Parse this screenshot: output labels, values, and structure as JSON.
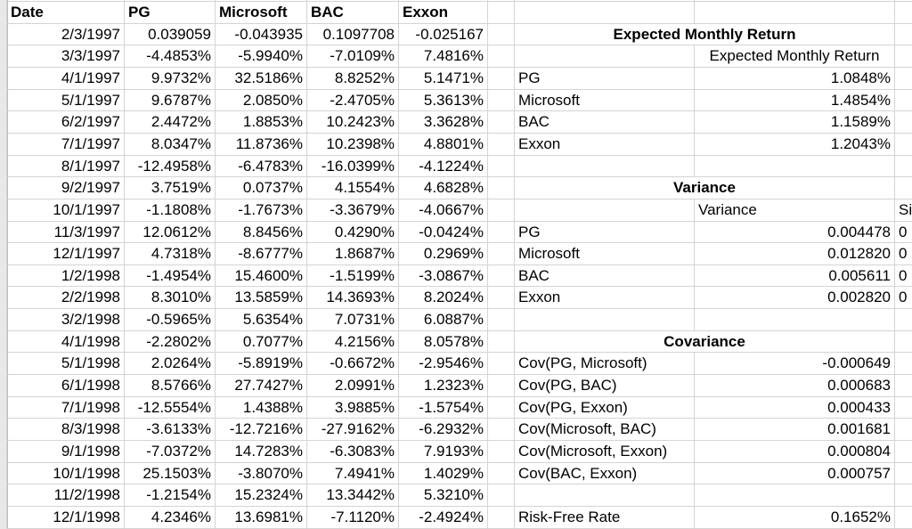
{
  "table": {
    "header": [
      "Date",
      "PG",
      "Microsoft",
      "BAC",
      "Exxon"
    ],
    "rows": [
      [
        "2/3/1997",
        "0.039059",
        "-0.043935",
        "0.1097708",
        "-0.025167"
      ],
      [
        "3/3/1997",
        "-4.4853%",
        "-5.9940%",
        "-7.0109%",
        "7.4816%"
      ],
      [
        "4/1/1997",
        "9.9732%",
        "32.5186%",
        "8.8252%",
        "5.1471%"
      ],
      [
        "5/1/1997",
        "9.6787%",
        "2.0850%",
        "-2.4705%",
        "5.3613%"
      ],
      [
        "6/2/1997",
        "2.4472%",
        "1.8853%",
        "10.2423%",
        "3.3628%"
      ],
      [
        "7/1/1997",
        "8.0347%",
        "11.8736%",
        "10.2398%",
        "4.8801%"
      ],
      [
        "8/1/1997",
        "-12.4958%",
        "-6.4783%",
        "-16.0399%",
        "-4.1224%"
      ],
      [
        "9/2/1997",
        "3.7519%",
        "0.0737%",
        "4.1554%",
        "4.6828%"
      ],
      [
        "10/1/1997",
        "-1.1808%",
        "-1.7673%",
        "-3.3679%",
        "-4.0667%"
      ],
      [
        "11/3/1997",
        "12.0612%",
        "8.8456%",
        "0.4290%",
        "-0.0424%"
      ],
      [
        "12/1/1997",
        "4.7318%",
        "-8.6777%",
        "1.8687%",
        "0.2969%"
      ],
      [
        "1/2/1998",
        "-1.4954%",
        "15.4600%",
        "-1.5199%",
        "-3.0867%"
      ],
      [
        "2/2/1998",
        "8.3010%",
        "13.5859%",
        "14.3693%",
        "8.2024%"
      ],
      [
        "3/2/1998",
        "-0.5965%",
        "5.6354%",
        "7.0731%",
        "6.0887%"
      ],
      [
        "4/1/1998",
        "-2.2802%",
        "0.7077%",
        "4.2156%",
        "8.0578%"
      ],
      [
        "5/1/1998",
        "2.0264%",
        "-5.8919%",
        "-0.6672%",
        "-2.9546%"
      ],
      [
        "6/1/1998",
        "8.5766%",
        "27.7427%",
        "2.0991%",
        "1.2323%"
      ],
      [
        "7/1/1998",
        "-12.5554%",
        "1.4388%",
        "3.9885%",
        "-1.5754%"
      ],
      [
        "8/3/1998",
        "-3.6133%",
        "-12.7216%",
        "-27.9162%",
        "-6.2932%"
      ],
      [
        "9/1/1998",
        "-7.0372%",
        "14.7283%",
        "-6.3083%",
        "7.9193%"
      ],
      [
        "10/1/1998",
        "25.1503%",
        "-3.8070%",
        "7.4941%",
        "1.4029%"
      ],
      [
        "11/2/1998",
        "-1.2154%",
        "15.2324%",
        "13.3442%",
        "5.3210%"
      ],
      [
        "12/1/1998",
        "4.2346%",
        "13.6981%",
        "-7.1120%",
        "-2.4924%"
      ]
    ]
  },
  "expected_return": {
    "title": "Expected Monthly Return",
    "header": "Expected Monthly Return",
    "rows": [
      [
        "PG",
        "1.0848%"
      ],
      [
        "Microsoft",
        "1.4854%"
      ],
      [
        "BAC",
        "1.1589%"
      ],
      [
        "Exxon",
        "1.2043%"
      ]
    ]
  },
  "variance": {
    "title": "Variance",
    "header": "Variance",
    "extra_header": "Si",
    "rows": [
      [
        "PG",
        "0.004478",
        "0"
      ],
      [
        "Microsoft",
        "0.012820",
        "0"
      ],
      [
        "BAC",
        "0.005611",
        "0"
      ],
      [
        "Exxon",
        "0.002820",
        "0"
      ]
    ]
  },
  "covariance": {
    "title": "Covariance",
    "rows": [
      [
        "Cov(PG, Microsoft)",
        "-0.000649"
      ],
      [
        "Cov(PG, BAC)",
        "0.000683"
      ],
      [
        "Cov(PG, Exxon)",
        "0.000433"
      ],
      [
        "Cov(Microsoft, BAC)",
        "0.001681"
      ],
      [
        "Cov(Microsoft, Exxon)",
        "0.000804"
      ],
      [
        "Cov(BAC, Exxon)",
        "0.000757"
      ]
    ]
  },
  "risk_free": {
    "label": "Risk-Free Rate",
    "value": "0.1652%"
  }
}
